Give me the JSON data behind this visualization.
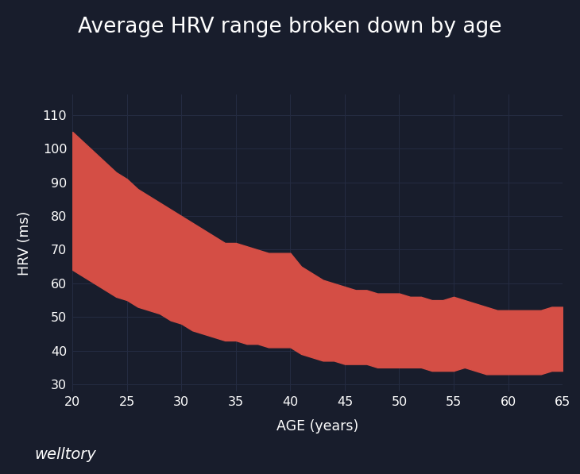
{
  "title": "Average HRV range broken down by age",
  "xlabel": "AGE (years)",
  "ylabel": "HRV (ms)",
  "watermark": "welltory",
  "background_color": "#181d2c",
  "fill_color_top": "#d44e45",
  "fill_color_bottom": "#c97060",
  "grid_color": "#252c42",
  "text_color": "#ffffff",
  "ylim": [
    28,
    116
  ],
  "xlim": [
    20,
    65
  ],
  "yticks": [
    30,
    40,
    50,
    60,
    70,
    80,
    90,
    100,
    110
  ],
  "xticks": [
    20,
    25,
    30,
    35,
    40,
    45,
    50,
    55,
    60,
    65
  ],
  "age": [
    20,
    21,
    22,
    23,
    24,
    25,
    26,
    27,
    28,
    29,
    30,
    31,
    32,
    33,
    34,
    35,
    36,
    37,
    38,
    39,
    40,
    41,
    42,
    43,
    44,
    45,
    46,
    47,
    48,
    49,
    50,
    51,
    52,
    53,
    54,
    55,
    56,
    57,
    58,
    59,
    60,
    61,
    62,
    63,
    64,
    65
  ],
  "upper": [
    105,
    102,
    99,
    96,
    93,
    91,
    88,
    86,
    84,
    82,
    80,
    78,
    76,
    74,
    72,
    72,
    71,
    70,
    69,
    69,
    69,
    65,
    63,
    61,
    60,
    59,
    58,
    58,
    57,
    57,
    57,
    56,
    56,
    55,
    55,
    56,
    55,
    54,
    53,
    52,
    52,
    52,
    52,
    52,
    53,
    53
  ],
  "lower": [
    64,
    62,
    60,
    58,
    56,
    55,
    53,
    52,
    51,
    49,
    48,
    46,
    45,
    44,
    43,
    43,
    42,
    42,
    41,
    41,
    41,
    39,
    38,
    37,
    37,
    36,
    36,
    36,
    35,
    35,
    35,
    35,
    35,
    34,
    34,
    34,
    35,
    34,
    33,
    33,
    33,
    33,
    33,
    33,
    34,
    34
  ]
}
